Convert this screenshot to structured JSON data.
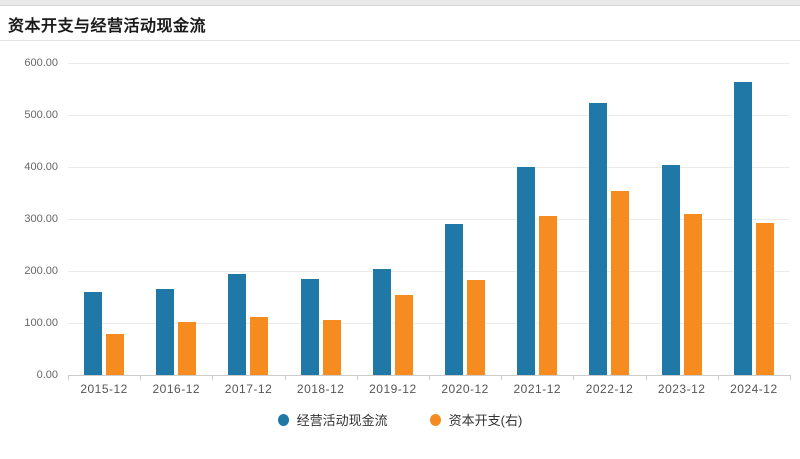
{
  "page": {
    "title": "资本开支与经营活动现金流"
  },
  "colors": {
    "series_blue": "#1f78a5",
    "series_orange": "#f68b20",
    "gridline": "#ebebeb",
    "axis_line": "#cccccc",
    "axis_label": "#666666",
    "title_text": "#1a1a1a"
  },
  "chart_data": {
    "type": "bar",
    "title": "资本开支与经营活动现金流",
    "categories": [
      "2015-12",
      "2016-12",
      "2017-12",
      "2018-12",
      "2019-12",
      "2020-12",
      "2021-12",
      "2022-12",
      "2023-12",
      "2024-12"
    ],
    "series": [
      {
        "name": "经营活动现金流",
        "color": "#1f78a5",
        "values": [
          160,
          165,
          195,
          185,
          204,
          290,
          400,
          524,
          404,
          563
        ]
      },
      {
        "name": "资本开支(右)",
        "color": "#f68b20",
        "values": [
          78,
          102,
          112,
          105,
          154,
          183,
          305,
          354,
          310,
          293
        ]
      }
    ],
    "xlabel": "",
    "ylabel": "",
    "ylim": [
      0,
      600
    ],
    "ytick_step": 100,
    "ytick_labels": [
      "0.00",
      "100.00",
      "200.00",
      "300.00",
      "400.00",
      "500.00",
      "600.00"
    ],
    "grid": true,
    "legend_position": "bottom"
  }
}
